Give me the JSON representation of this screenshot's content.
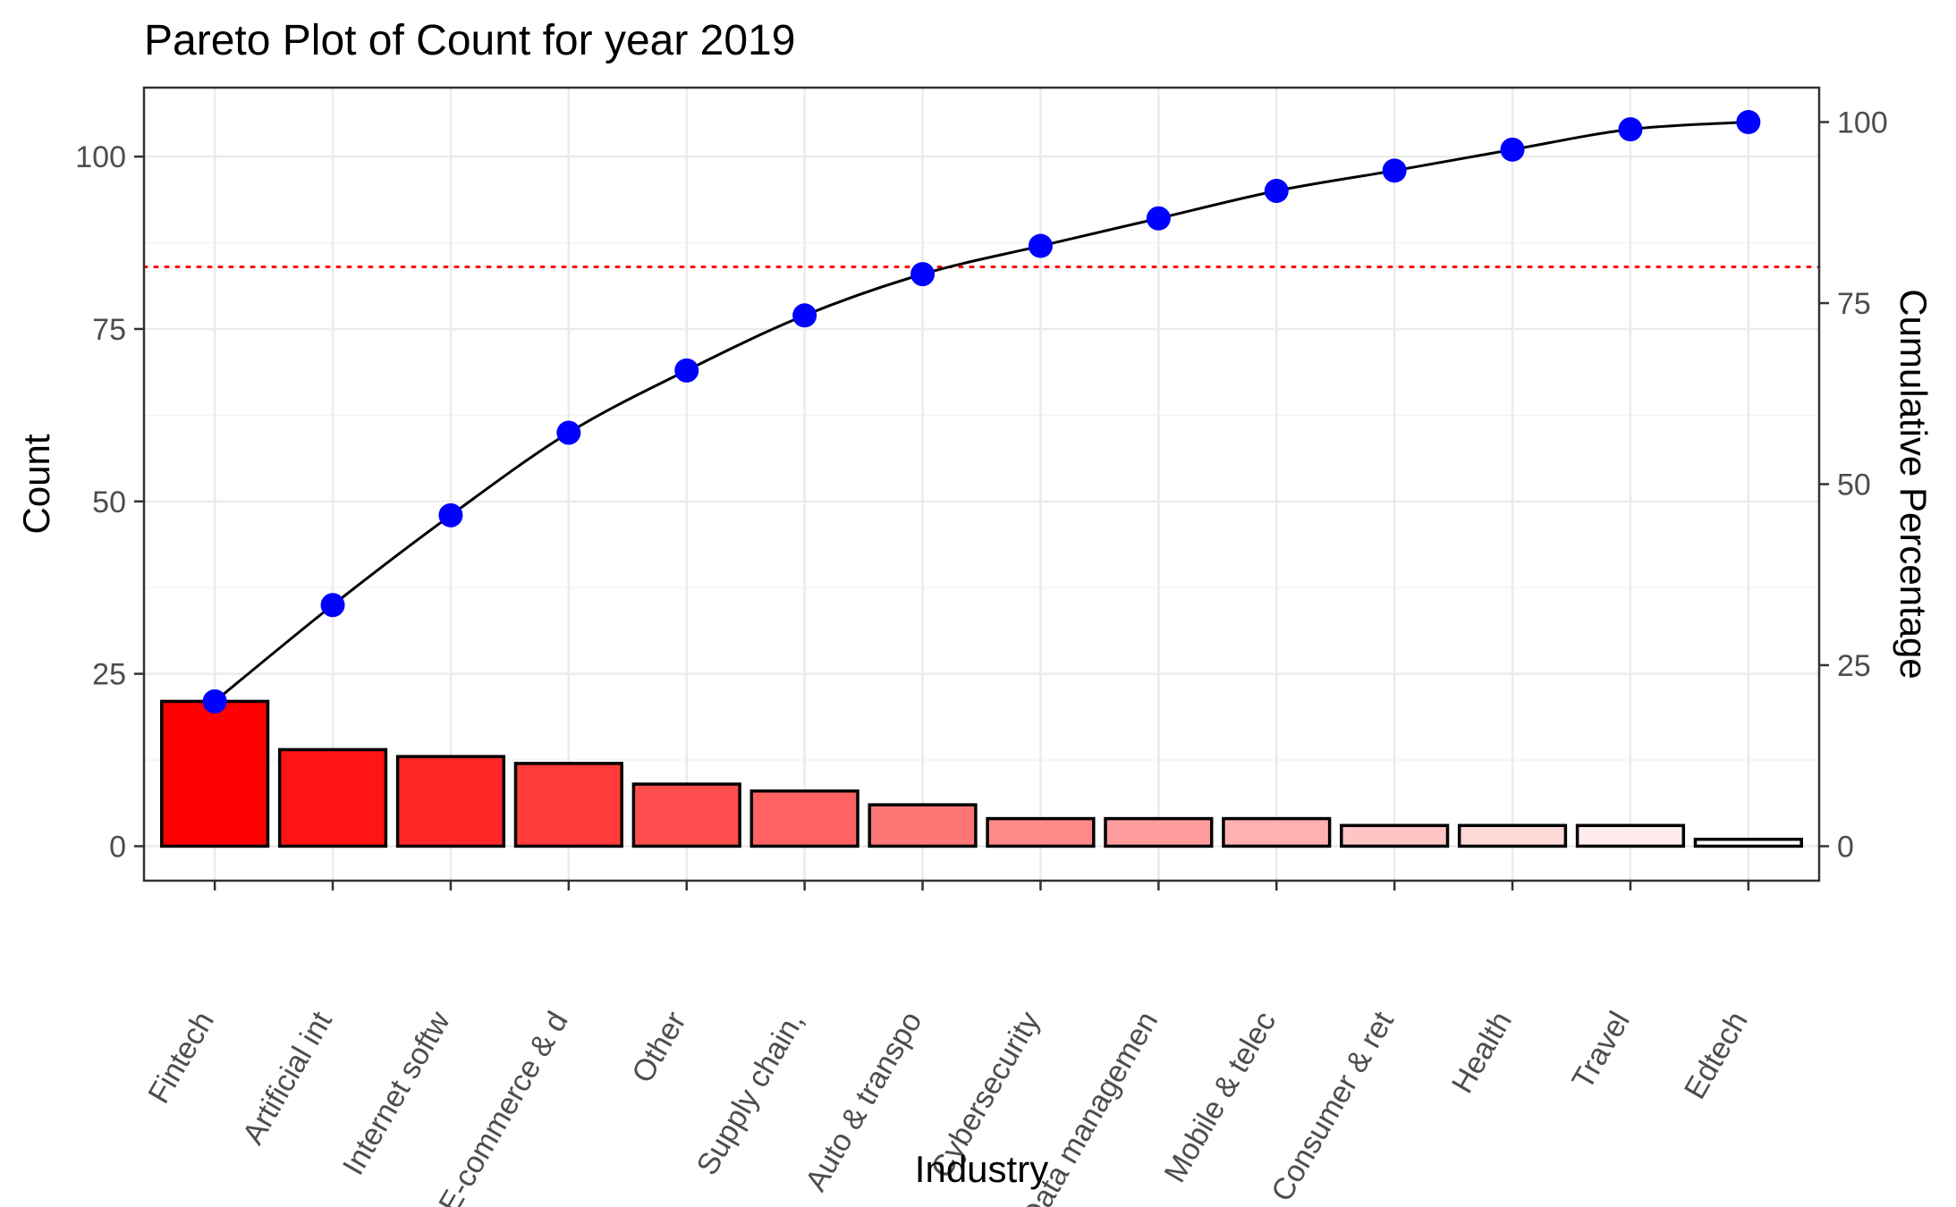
{
  "chart_data": {
    "type": "bar",
    "title": "Pareto Plot of Count for year 2019",
    "xlabel": "Industry",
    "ylabel": "Count",
    "y2label": "Cumulative Percentage",
    "categories": [
      "Fintech",
      "Artificial int",
      "Internet softw",
      "E-commerce & d",
      "Other",
      "Supply chain,",
      "Auto & transpo",
      "Cybersecurity",
      "Data managemen",
      "Mobile & telec",
      "Consumer & ret",
      "Health",
      "Travel",
      "Edtech"
    ],
    "series": [
      {
        "type": "bar",
        "values": [
          21,
          14,
          13,
          12,
          9,
          8,
          6,
          4,
          4,
          4,
          3,
          3,
          3,
          1
        ]
      },
      {
        "type": "line",
        "values": [
          20.0,
          33.3,
          45.7,
          57.1,
          65.7,
          73.3,
          79.0,
          82.9,
          86.7,
          90.5,
          93.3,
          96.2,
          99.0,
          100.0
        ]
      }
    ],
    "cumulative_threshold_percent": 80,
    "ylim": [
      -5,
      110
    ],
    "y2lim": [
      -4.76,
      104.76
    ],
    "yticks": [
      0,
      25,
      50,
      75,
      100
    ],
    "y2ticks": [
      0,
      25,
      50,
      75,
      100
    ],
    "grid": true,
    "colors": {
      "bar_top": "#ff0000",
      "bar_bottom": "#ffffff",
      "bar_outline": "#000000",
      "line": "#000000",
      "points": "#0000ff",
      "threshold": "#ff0000"
    }
  }
}
